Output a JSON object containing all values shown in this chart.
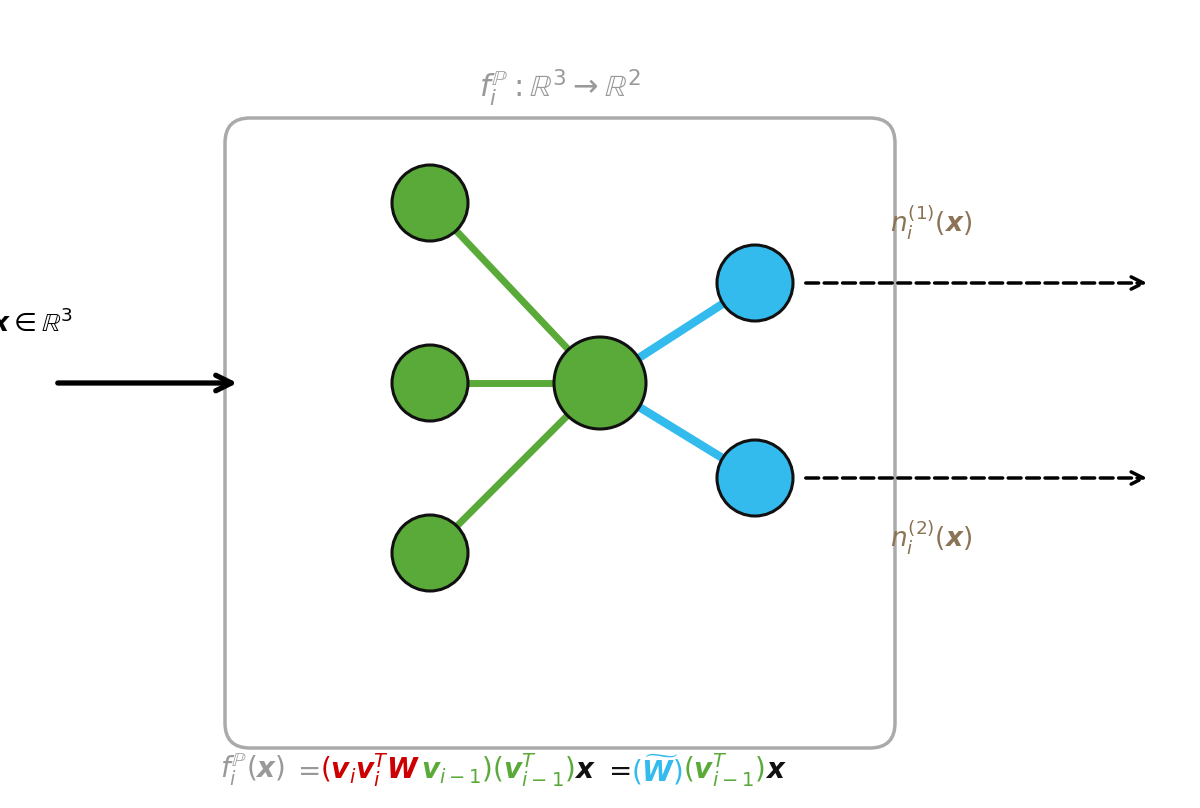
{
  "fig_width": 12.0,
  "fig_height": 8.08,
  "bg_color": "#ffffff",
  "green_color": "#5aaa3a",
  "blue_color": "#33bbee",
  "node_edge_color": "#111111",
  "box_color": "#aaaaaa",
  "title_color": "#999999",
  "output_label_color": "#8B7355",
  "formula_color_gray": "#999999",
  "formula_color_red": "#cc0000",
  "formula_color_green": "#5aaa3a",
  "formula_color_blue": "#33bbee",
  "formula_color_black": "#111111"
}
